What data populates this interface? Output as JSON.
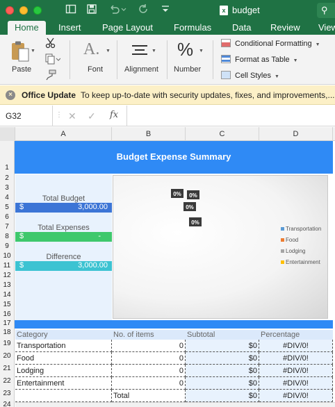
{
  "window": {
    "title": "budget",
    "doc_icon_glyph": "x"
  },
  "toolbar_icons": [
    "sidebar-icon",
    "save-icon",
    "undo-icon",
    "redo-icon",
    "customize-icon",
    "search-icon"
  ],
  "tabs": [
    {
      "label": "Home",
      "active": true
    },
    {
      "label": "Insert"
    },
    {
      "label": "Page Layout"
    },
    {
      "label": "Formulas"
    },
    {
      "label": "Data"
    },
    {
      "label": "Review"
    },
    {
      "label": "View"
    }
  ],
  "ribbon": {
    "paste": "Paste",
    "font": "Font",
    "alignment": "Alignment",
    "number": "Number",
    "percent_glyph": "%",
    "conditional_formatting": "Conditional Formatting",
    "format_as_table": "Format as Table",
    "cell_styles": "Cell Styles"
  },
  "notice": {
    "icon_glyph": "×",
    "title": "Office Update",
    "text": "To keep up-to-date with security updates, fixes, and improvements,..."
  },
  "formula_bar": {
    "name_box": "G32",
    "fx": "fx",
    "formula": ""
  },
  "columns": [
    "A",
    "B",
    "C",
    "D"
  ],
  "rows": [
    "1",
    "2",
    "3",
    "4",
    "5",
    "6",
    "7",
    "8",
    "9",
    "10",
    "11",
    "12",
    "13",
    "14",
    "15",
    "16",
    "17",
    "18",
    "19",
    "20",
    "21",
    "22",
    "23",
    "24"
  ],
  "sheet": {
    "title": "Budget Expense Summary",
    "total_budget_label": "Total Budget",
    "total_budget_currency": "$",
    "total_budget_value": "3,000.00",
    "total_expenses_label": "Total Expenses",
    "total_expenses_currency": "$",
    "total_expenses_value": "-",
    "difference_label": "Difference",
    "difference_currency": "$",
    "difference_value": "3,000.00",
    "table_headers": [
      "Category",
      "No. of items",
      "Subtotal",
      "Percentage"
    ],
    "table_rows": [
      {
        "category": "Transportation",
        "items": "0",
        "subtotal": "$0",
        "percentage": "#DIV/0!"
      },
      {
        "category": "Food",
        "items": "0",
        "subtotal": "$0",
        "percentage": "#DIV/0!"
      },
      {
        "category": "Lodging",
        "items": "0",
        "subtotal": "$0",
        "percentage": "#DIV/0!"
      },
      {
        "category": "Entertainment",
        "items": "0",
        "subtotal": "$0",
        "percentage": "#DIV/0!"
      }
    ],
    "total_row": {
      "label": "Total",
      "subtotal": "$0",
      "percentage": "#DIV/0!"
    }
  },
  "chart_data": {
    "type": "pie",
    "categories": [
      "Transportation",
      "Food",
      "Lodging",
      "Entertainment"
    ],
    "values": [
      0,
      0,
      0,
      0
    ],
    "data_labels": [
      "0%",
      "0%",
      "0%",
      "0%"
    ],
    "colors": [
      "#5b9bd5",
      "#ed7d31",
      "#a5a5a5",
      "#ffc000"
    ],
    "legend_position": "right"
  },
  "colors": {
    "excel_green": "#1f7244",
    "header_blue": "#2f8af5",
    "panel_blue": "#e8f2fd",
    "budget_blue": "#3c75d6",
    "expenses_green": "#3ec86c",
    "difference_teal": "#3cc3d2"
  }
}
